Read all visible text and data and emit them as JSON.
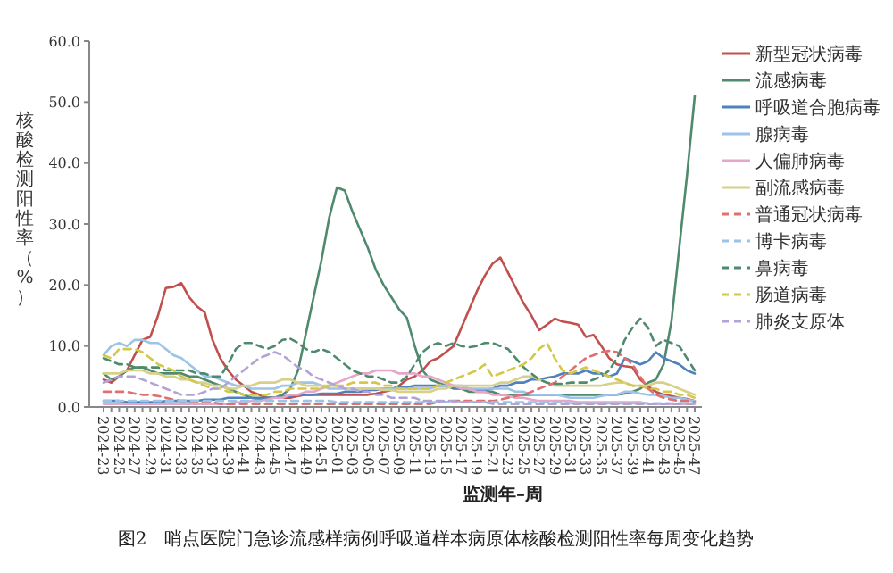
{
  "chart_data": {
    "type": "line",
    "title": "图2　哨点医院门急诊流感样病例呼吸道样本病原体核酸检测阳性率每周变化趋势",
    "xlabel": "监测年–周",
    "ylabel": "核酸检测阳性率（%）",
    "categories": [
      "2024-23",
      null,
      "2024-25",
      null,
      "2024-27",
      null,
      "2024-29",
      null,
      "2024-31",
      null,
      "2024-33",
      null,
      "2024-35",
      null,
      "2024-37",
      null,
      "2024-39",
      null,
      "2024-41",
      null,
      "2024-43",
      null,
      "2024-45",
      null,
      "2024-47",
      null,
      "2024-49",
      null,
      "2024-51",
      null,
      "2025-01",
      null,
      "2025-03",
      null,
      "2025-05",
      null,
      "2025-07",
      null,
      "2025-09",
      null,
      "2025-11",
      null,
      "2025-13",
      null,
      "2025-15",
      null,
      "2025-17",
      null,
      "2025-19",
      null,
      "2025-21",
      null,
      "2025-23",
      null,
      "2025-25",
      null,
      "2025-27",
      null,
      "2025-29",
      null,
      "2025-31",
      null,
      "2025-33",
      null,
      "2025-35",
      null,
      "2025-37",
      null,
      "2025-39",
      null,
      "2025-41",
      null,
      "2025-43",
      null,
      "2025-45",
      null,
      "2025-47"
    ],
    "ylim": [
      0,
      60
    ],
    "yticks": [
      {
        "value": 0,
        "label": "0.0"
      },
      {
        "value": 10,
        "label": "10.0"
      },
      {
        "value": 20,
        "label": "20.0"
      },
      {
        "value": 30,
        "label": "30.0"
      },
      {
        "value": 40,
        "label": "40.0"
      },
      {
        "value": 50,
        "label": "50.0"
      },
      {
        "value": 60,
        "label": "60.0"
      }
    ],
    "legend": "top right",
    "series": [
      {
        "name": "新型冠状病毒",
        "color": "#c0504d",
        "line_style": "solid",
        "values": [
          4.5,
          4,
          5,
          6,
          8.5,
          11,
          11.5,
          15,
          19.5,
          19.7,
          20.3,
          18,
          16.5,
          15.5,
          11,
          8,
          6,
          4.5,
          3.5,
          2.5,
          2,
          1.5,
          1.5,
          1.5,
          1.5,
          1.8,
          2,
          2,
          2,
          2,
          2,
          2,
          2,
          2,
          2,
          2.2,
          2.5,
          2.8,
          3.5,
          4.5,
          5,
          6,
          7.5,
          8,
          9,
          10,
          13,
          16,
          19,
          21.5,
          23.5,
          24.5,
          22,
          19.5,
          17,
          15,
          12.6,
          13.5,
          14.5,
          14,
          13.8,
          13.5,
          11.5,
          11.8,
          10,
          8,
          7,
          6.7,
          6.5,
          4.5,
          3.4,
          2.5,
          2,
          1.8,
          1.5,
          1.3,
          1
        ]
      },
      {
        "name": "流感病毒",
        "color": "#4f8a6e",
        "line_style": "solid",
        "values": [
          5.5,
          4.5,
          5,
          6,
          6.5,
          6.5,
          6,
          5.5,
          5.5,
          5.5,
          5.5,
          5,
          5,
          4.5,
          4,
          3.5,
          3,
          2.5,
          2,
          1.5,
          1.5,
          1.5,
          1.5,
          2,
          3,
          6,
          12,
          18,
          24,
          31,
          36,
          35.5,
          32,
          29,
          26,
          22.5,
          20,
          18,
          16,
          14.6,
          10,
          6,
          4.5,
          4,
          3.5,
          3,
          3,
          2.5,
          2.5,
          2.5,
          2.5,
          2,
          2,
          2,
          2,
          2,
          2,
          2,
          2,
          2,
          2,
          2,
          2,
          2,
          2,
          2,
          2,
          2.2,
          2.5,
          3,
          4,
          4.5,
          7,
          14,
          26,
          38,
          51
        ]
      },
      {
        "name": "呼吸道合胞病毒",
        "color": "#4f81bd",
        "line_style": "solid",
        "values": [
          1,
          1,
          1,
          0.8,
          0.8,
          0.8,
          0.8,
          0.8,
          1,
          1,
          1,
          1,
          1,
          1.2,
          1.2,
          1.2,
          1.5,
          1.5,
          1.5,
          1.5,
          1.2,
          1.5,
          1.5,
          1.8,
          1.8,
          2,
          2,
          2,
          2.2,
          2.2,
          2.2,
          2.5,
          2.5,
          2.5,
          2.8,
          2.8,
          3,
          3,
          3.2,
          3.2,
          3.5,
          3.5,
          3.5,
          3.5,
          3.5,
          3.2,
          3,
          3,
          2.8,
          2.8,
          3,
          3.5,
          3.5,
          4,
          4,
          4.5,
          4.5,
          4.8,
          5,
          5.5,
          5.5,
          5.5,
          6,
          5.5,
          5.5,
          5,
          5.5,
          8,
          7.5,
          7,
          7.5,
          9,
          8,
          7.5,
          7,
          6,
          5.5
        ]
      },
      {
        "name": "腺病毒",
        "color": "#9dc3e6",
        "line_style": "solid",
        "values": [
          8.5,
          10,
          10.5,
          10,
          11,
          11,
          10.5,
          10.5,
          9.5,
          8.5,
          8,
          7,
          6,
          5,
          5,
          4.5,
          4,
          3.5,
          3.5,
          3,
          3,
          3,
          3,
          3.5,
          3.5,
          4,
          4,
          4,
          3.5,
          3,
          3,
          3,
          3,
          3,
          3,
          3,
          3,
          3,
          3,
          3,
          3,
          3,
          3,
          3.5,
          3.5,
          3.5,
          3.5,
          3,
          3,
          3,
          3,
          3,
          3,
          2.5,
          2.5,
          2,
          2,
          2,
          2,
          1.8,
          1.5,
          1.5,
          1.5,
          1.5,
          1.8,
          2,
          2,
          2.5,
          2.5,
          2.2,
          2,
          2,
          1.8,
          1.5,
          1.5,
          1.2,
          1
        ]
      },
      {
        "name": "人偏肺病毒",
        "color": "#e6a6c7",
        "line_style": "solid",
        "values": [
          0.5,
          0.5,
          0.5,
          0.5,
          0.5,
          0.5,
          0.5,
          0.5,
          0.5,
          0.5,
          0.5,
          0.5,
          0.5,
          0.5,
          0.5,
          0.5,
          0.5,
          0.8,
          0.8,
          1,
          1,
          1.2,
          1.5,
          1.5,
          2,
          2,
          2.5,
          2.5,
          3,
          3.5,
          4,
          4.5,
          5,
          5.5,
          5.5,
          6,
          6,
          6,
          5.5,
          5.5,
          5.5,
          5,
          5,
          4.5,
          4,
          3.5,
          3,
          3,
          2.5,
          2.5,
          2,
          2,
          1.8,
          1.5,
          1.5,
          1.2,
          1,
          1,
          1,
          1,
          1,
          0.8,
          0.8,
          0.8,
          0.8,
          0.8,
          0.8,
          0.8,
          0.8,
          0.8,
          0.5,
          0.5,
          0.5,
          0.5,
          0.5,
          0.5,
          0.5
        ]
      },
      {
        "name": "副流感病毒",
        "color": "#d6d08b",
        "line_style": "solid",
        "values": [
          5.5,
          5.5,
          5.5,
          6,
          6,
          6,
          5.5,
          5.5,
          5,
          5,
          4.5,
          4.5,
          4,
          4,
          3.5,
          3.5,
          3,
          3,
          3.5,
          3.5,
          4,
          4,
          4,
          4.5,
          4.5,
          4,
          3.5,
          3.5,
          3.5,
          3.5,
          3.5,
          3,
          3,
          3,
          3,
          3,
          2.8,
          2.8,
          2.5,
          2.5,
          2.5,
          2.5,
          2.5,
          3,
          3,
          3.5,
          3.5,
          3.5,
          3.5,
          3.5,
          3.5,
          4,
          4,
          4.5,
          5,
          5,
          4.5,
          4,
          3.5,
          3.5,
          3.5,
          3.5,
          3.5,
          3.5,
          3.5,
          3.8,
          4,
          4,
          3.5,
          3.5,
          3.5,
          4,
          4,
          3.5,
          3,
          2.5,
          2
        ]
      },
      {
        "name": "普通冠状病毒",
        "color": "#e07070",
        "line_style": "dashed",
        "values": [
          2.5,
          2.5,
          2.5,
          2.5,
          2.2,
          2,
          2,
          1.8,
          1.5,
          1.2,
          1,
          1,
          0.8,
          0.8,
          0.8,
          0.5,
          0.5,
          0.5,
          0.5,
          0.5,
          0.5,
          0.5,
          0.5,
          0.5,
          0.5,
          0.5,
          0.5,
          0.5,
          0.5,
          0.5,
          0.5,
          0.5,
          0.5,
          0.5,
          0.5,
          0.5,
          0.5,
          0.5,
          0.5,
          0.5,
          0.5,
          0.5,
          0.5,
          0.8,
          0.8,
          1,
          1,
          1,
          1,
          1,
          1,
          1.2,
          1.5,
          1.8,
          2,
          2.5,
          3,
          3.5,
          4,
          5,
          6,
          7,
          8,
          8.5,
          9,
          9.2,
          9,
          8,
          7,
          5,
          3,
          2,
          1.5,
          1.2,
          1,
          1,
          0.8
        ]
      },
      {
        "name": "博卡病毒",
        "color": "#9dc3e6",
        "line_style": "dashed",
        "values": [
          1,
          1,
          1,
          1,
          1,
          1,
          1,
          1,
          1,
          1,
          1,
          1,
          1,
          1,
          1,
          1,
          1,
          1,
          1,
          1,
          1,
          1,
          1,
          1,
          1,
          1,
          1,
          1,
          1,
          1,
          0.8,
          0.8,
          0.8,
          0.8,
          0.8,
          0.8,
          0.8,
          0.8,
          0.8,
          0.8,
          0.8,
          0.8,
          0.8,
          0.8,
          0.8,
          0.8,
          0.8,
          0.8,
          0.8,
          0.8,
          0.8,
          0.8,
          0.8,
          0.8,
          0.8,
          0.8,
          0.8,
          0.8,
          0.8,
          0.8,
          0.6,
          0.6,
          0.6,
          0.6,
          0.6,
          0.6,
          0.6,
          0.6,
          0.6,
          0.6,
          0.6,
          0.6,
          0.6,
          0.6,
          0.6,
          0.6,
          0.6
        ]
      },
      {
        "name": "鼻病毒",
        "color": "#4f8a6e",
        "line_style": "dashed",
        "values": [
          8,
          7.5,
          7,
          7,
          6.5,
          6.5,
          6.5,
          6.5,
          6,
          6,
          6,
          6,
          5.5,
          5.5,
          5,
          5,
          7,
          9.5,
          10.5,
          10.5,
          10,
          9.5,
          10,
          11,
          11.2,
          10.5,
          9.5,
          9,
          9.5,
          9,
          8,
          7,
          6,
          5.5,
          5,
          5,
          4.5,
          4,
          4,
          5,
          7,
          9,
          10,
          10.5,
          10,
          10.5,
          10,
          9.8,
          10,
          10.5,
          10.5,
          10,
          9.5,
          8,
          6.5,
          5.5,
          4.5,
          4,
          3.8,
          3.8,
          4,
          4,
          4,
          4.5,
          5,
          6,
          8,
          11,
          13,
          14.5,
          13,
          10,
          11,
          10.5,
          10,
          8,
          6
        ]
      },
      {
        "name": "肠道病毒",
        "color": "#d4c84a",
        "line_style": "dashed",
        "values": [
          8.5,
          8,
          9.5,
          9.5,
          9.5,
          9,
          8,
          7,
          6.5,
          6,
          5,
          4.5,
          4,
          3.5,
          3,
          3,
          2.5,
          2.5,
          2,
          2,
          2,
          2,
          2.5,
          2.5,
          3,
          3,
          3,
          3,
          3,
          3.5,
          3.5,
          3.5,
          4,
          4,
          4,
          4,
          3.5,
          3.5,
          3,
          3,
          3,
          3,
          3,
          3.5,
          4,
          4.5,
          5,
          5.5,
          6,
          7,
          5,
          5.5,
          6,
          6.5,
          7,
          8,
          9.5,
          10.5,
          8,
          6,
          5.5,
          6,
          6.5,
          6,
          5.5,
          5,
          4.5,
          4,
          3.5,
          3.5,
          3,
          3,
          2.5,
          2.5,
          2,
          2,
          1.5
        ]
      },
      {
        "name": "肺炎支原体",
        "color": "#b3a2d6",
        "line_style": "dashed",
        "values": [
          4,
          4.5,
          5,
          5,
          5,
          4.5,
          4,
          3.5,
          3,
          2.5,
          2,
          2,
          2,
          2.5,
          3,
          3,
          4,
          5,
          6,
          7,
          8,
          8.5,
          9,
          8.5,
          7.5,
          6.5,
          6,
          5,
          4.5,
          4,
          3.5,
          3,
          3,
          2.5,
          2.5,
          2,
          2,
          1.5,
          1.5,
          1.5,
          1.5,
          1,
          1,
          1,
          1,
          1,
          0.8,
          0.8,
          0.8,
          0.8,
          0.5,
          0.5,
          0.5,
          0.5,
          0.5,
          0.5,
          0.5,
          0.5,
          0.5,
          0.5,
          0.5,
          0.5,
          0.5,
          0.5,
          0.5,
          0.5,
          0.5,
          0.5,
          0.5,
          0.5,
          0.5,
          0.5,
          0.5,
          0.5,
          0.5,
          0.5,
          0.5
        ]
      }
    ]
  }
}
